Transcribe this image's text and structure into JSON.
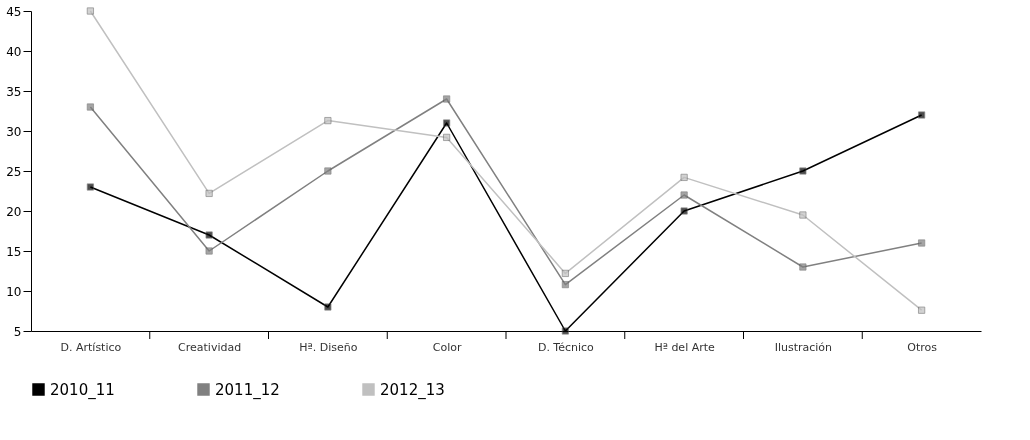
{
  "chart_data": {
    "type": "line",
    "categories": [
      "D. Artístico",
      "Creatividad",
      "Hª. Diseño",
      "Color",
      "D. Técnico",
      "Hª del Arte",
      "Ilustración",
      "Otros"
    ],
    "series": [
      {
        "name": "2010_11",
        "color": "#000000",
        "values": [
          23,
          17,
          8,
          31,
          5,
          20,
          25,
          32
        ]
      },
      {
        "name": "2011_12",
        "color": "#808080",
        "values": [
          33,
          15,
          25,
          34,
          10.8,
          22,
          13,
          16
        ]
      },
      {
        "name": "2012_13",
        "color": "#c0c0c0",
        "values": [
          45,
          22.2,
          31.3,
          29.2,
          12.2,
          24.2,
          19.5,
          7.6
        ]
      }
    ],
    "ylim": [
      5,
      45
    ],
    "yticks": [
      5,
      10,
      15,
      20,
      25,
      30,
      35,
      40,
      45
    ],
    "grid": false,
    "legend": "bottom left",
    "marker": "square",
    "line_style": "solid"
  }
}
